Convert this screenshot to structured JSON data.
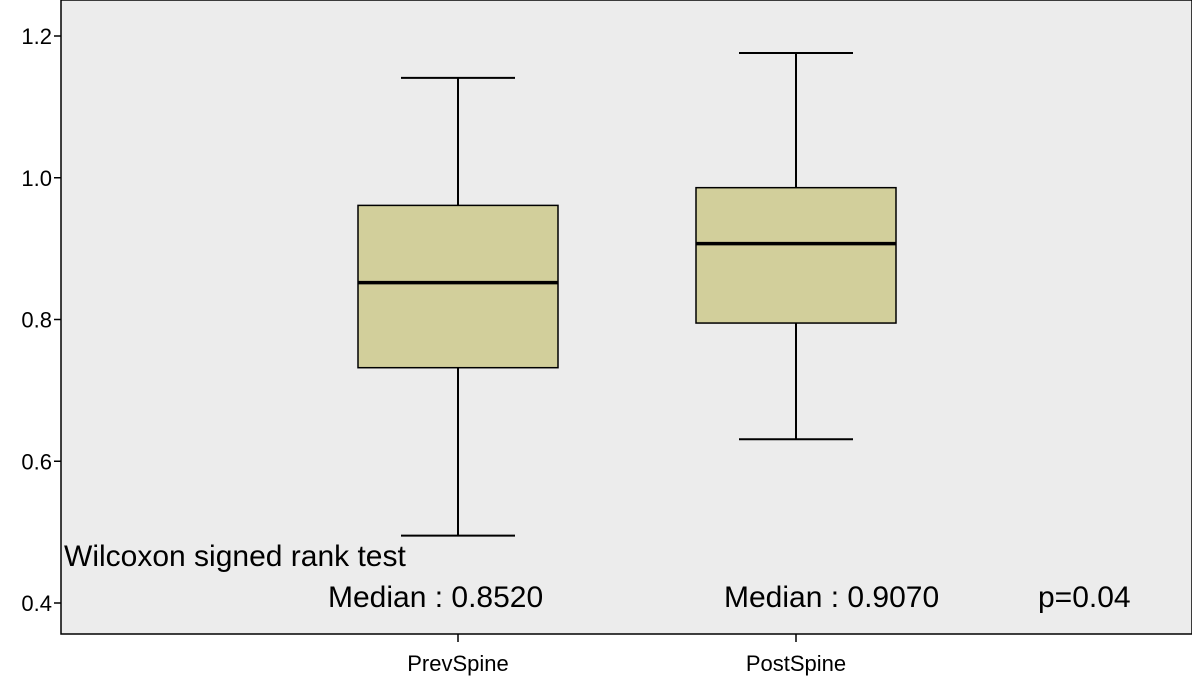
{
  "chart_data": {
    "type": "boxplot",
    "title": "",
    "xlabel": "",
    "ylabel": "",
    "ylim": [
      0.4,
      1.2
    ],
    "yticks": [
      {
        "value": 0.4,
        "label": "0.4"
      },
      {
        "value": 0.6,
        "label": "0.6"
      },
      {
        "value": 0.8,
        "label": "0.8"
      },
      {
        "value": 1.0,
        "label": "1.0"
      },
      {
        "value": 1.2,
        "label": "1.2"
      }
    ],
    "grid": false,
    "categories": [
      "PrevSpine",
      "PostSpine"
    ],
    "boxes": [
      {
        "category": "PrevSpine",
        "whisker_low": 0.495,
        "q1": 0.732,
        "median": 0.852,
        "q3": 0.961,
        "whisker_high": 1.141
      },
      {
        "category": "PostSpine",
        "whisker_low": 0.631,
        "q1": 0.795,
        "median": 0.907,
        "q3": 0.986,
        "whisker_high": 1.176
      }
    ],
    "annotations": {
      "test_name": "Wilcoxon signed rank test",
      "median_prev": "Median : 0.8520",
      "median_post": "Median : 0.9070",
      "p_value": "p=0.04"
    },
    "colors": {
      "plot_background": "#ececec",
      "box_fill": "#d2cf9b",
      "line": "#000000"
    }
  }
}
